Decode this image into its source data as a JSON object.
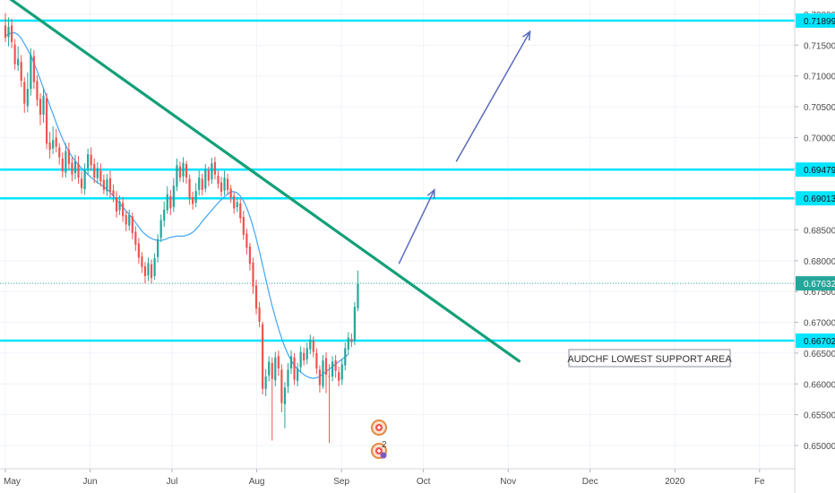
{
  "chart_data": {
    "type": "candlestick",
    "symbol_note": "AUDCHF LOWEST SUPPORT AREA",
    "x_axis": {
      "labels": [
        "May",
        "Jun",
        "Jul",
        "Aug",
        "Sep",
        "Oct",
        "Nov",
        "Dec",
        "2020",
        "Fe"
      ],
      "label_days": [
        0,
        31,
        61,
        92,
        123,
        153,
        184,
        214,
        245,
        276
      ]
    },
    "y_axis": {
      "ticks": [
        0.65,
        0.655,
        0.66,
        0.665,
        0.67,
        0.675,
        0.68,
        0.685,
        0.69,
        0.695,
        0.7,
        0.705,
        0.71,
        0.715,
        0.72
      ],
      "tick_labels": [
        "0.65000",
        "0.65500",
        "0.66000",
        "0.66500",
        "0.67000",
        "0.67500",
        "0.68000",
        "0.68500",
        "0.69000",
        "0.69500",
        "0.70000",
        "0.70500",
        "0.71000",
        "0.71500",
        "0.72000"
      ],
      "range": [
        0.6475,
        0.7225
      ]
    },
    "horizontal_levels": [
      {
        "value": 0.71899,
        "label": "0.71899"
      },
      {
        "value": 0.69479,
        "label": "0.69479"
      },
      {
        "value": 0.69013,
        "label": "0.69013"
      },
      {
        "value": 0.66702,
        "label": "0.66702"
      }
    ],
    "last_price": {
      "value": 0.67632,
      "label": "0.67632"
    },
    "trendline": {
      "start_day": -2,
      "start_value": 0.7237,
      "end_day": 188,
      "end_value": 0.6637
    },
    "forecast_arrows": [
      {
        "from_day": 144,
        "from_value": 0.6795,
        "to_day": 157,
        "to_value": 0.6915
      },
      {
        "from_day": 165,
        "from_value": 0.6961,
        "to_day": 192,
        "to_value": 0.7172
      }
    ],
    "candles": [
      [
        0.7182,
        0.7162,
        0.7202,
        0.7155
      ],
      [
        0.7163,
        0.718,
        0.7195,
        0.7148
      ],
      [
        0.7182,
        0.7155,
        0.7193,
        0.7145
      ],
      [
        0.7151,
        0.7119,
        0.716,
        0.711
      ],
      [
        0.7117,
        0.7128,
        0.7148,
        0.7108
      ],
      [
        0.7123,
        0.7092,
        0.7134,
        0.7082
      ],
      [
        0.709,
        0.7055,
        0.7098,
        0.704
      ],
      [
        0.7051,
        0.7079,
        0.7106,
        0.7041
      ],
      [
        0.7079,
        0.7134,
        0.7145,
        0.7068
      ],
      [
        0.7132,
        0.709,
        0.7142,
        0.7079
      ],
      [
        0.7092,
        0.7061,
        0.7101,
        0.7051
      ],
      [
        0.7063,
        0.7037,
        0.7072,
        0.702
      ],
      [
        0.7037,
        0.7068,
        0.7081,
        0.7024
      ],
      [
        0.7064,
        0.699,
        0.7072,
        0.6981
      ],
      [
        0.6992,
        0.698,
        0.7009,
        0.6966
      ],
      [
        0.6982,
        0.6996,
        0.7018,
        0.6973
      ],
      [
        0.7,
        0.6985,
        0.7014,
        0.6976
      ],
      [
        0.6984,
        0.6968,
        0.6991,
        0.6956
      ],
      [
        0.6966,
        0.6945,
        0.6976,
        0.6935
      ],
      [
        0.6943,
        0.6978,
        0.6991,
        0.6935
      ],
      [
        0.698,
        0.6957,
        0.6992,
        0.6948
      ],
      [
        0.6959,
        0.694,
        0.6968,
        0.6929
      ],
      [
        0.6942,
        0.6961,
        0.6972,
        0.6932
      ],
      [
        0.6957,
        0.6935,
        0.697,
        0.6925
      ],
      [
        0.6933,
        0.6918,
        0.6945,
        0.6909
      ],
      [
        0.6916,
        0.6947,
        0.6958,
        0.6907
      ],
      [
        0.6949,
        0.6973,
        0.6982,
        0.6939
      ],
      [
        0.6972,
        0.6955,
        0.6984,
        0.6946
      ],
      [
        0.6957,
        0.6935,
        0.6966,
        0.6926
      ],
      [
        0.6934,
        0.695,
        0.696,
        0.6925
      ],
      [
        0.6946,
        0.6929,
        0.6958,
        0.6921
      ],
      [
        0.6931,
        0.6915,
        0.694,
        0.6908
      ],
      [
        0.6913,
        0.6932,
        0.6941,
        0.6905
      ],
      [
        0.6934,
        0.6912,
        0.6946,
        0.6902
      ],
      [
        0.6914,
        0.6905,
        0.6924,
        0.6895
      ],
      [
        0.6903,
        0.688,
        0.6913,
        0.687
      ],
      [
        0.6882,
        0.6896,
        0.6906,
        0.6874
      ],
      [
        0.6894,
        0.6872,
        0.6903,
        0.6863
      ],
      [
        0.6874,
        0.6859,
        0.6881,
        0.6848
      ],
      [
        0.6857,
        0.6874,
        0.6883,
        0.6849
      ],
      [
        0.6872,
        0.6845,
        0.6878,
        0.6835
      ],
      [
        0.6847,
        0.6826,
        0.6856,
        0.6816
      ],
      [
        0.6828,
        0.6805,
        0.6837,
        0.6795
      ],
      [
        0.6807,
        0.679,
        0.6814,
        0.678
      ],
      [
        0.6791,
        0.6775,
        0.6798,
        0.6763
      ],
      [
        0.6776,
        0.6796,
        0.6805,
        0.6767
      ],
      [
        0.6794,
        0.6772,
        0.6802,
        0.6763
      ],
      [
        0.6775,
        0.6804,
        0.6812,
        0.6769
      ],
      [
        0.6806,
        0.6835,
        0.6843,
        0.6797
      ],
      [
        0.6837,
        0.6866,
        0.6875,
        0.683
      ],
      [
        0.6865,
        0.6883,
        0.6896,
        0.6855
      ],
      [
        0.6882,
        0.6908,
        0.6921,
        0.6876
      ],
      [
        0.6905,
        0.6885,
        0.6915,
        0.6874
      ],
      [
        0.6887,
        0.6922,
        0.6934,
        0.6879
      ],
      [
        0.692,
        0.6955,
        0.6966,
        0.6913
      ],
      [
        0.6953,
        0.6935,
        0.6961,
        0.6928
      ],
      [
        0.6937,
        0.6959,
        0.6968,
        0.6927
      ],
      [
        0.6957,
        0.6935,
        0.6962,
        0.6925
      ],
      [
        0.6933,
        0.6901,
        0.694,
        0.6891
      ],
      [
        0.6903,
        0.6892,
        0.6912,
        0.6883
      ],
      [
        0.6894,
        0.6913,
        0.6926,
        0.6887
      ],
      [
        0.6915,
        0.6935,
        0.6946,
        0.6906
      ],
      [
        0.6933,
        0.6915,
        0.6941,
        0.6906
      ],
      [
        0.6917,
        0.6948,
        0.6957,
        0.6911
      ],
      [
        0.6946,
        0.693,
        0.6953,
        0.6921
      ],
      [
        0.6932,
        0.6958,
        0.6967,
        0.6925
      ],
      [
        0.696,
        0.694,
        0.6969,
        0.6932
      ],
      [
        0.6938,
        0.6925,
        0.6946,
        0.6917
      ],
      [
        0.6927,
        0.6912,
        0.6936,
        0.6904
      ],
      [
        0.6914,
        0.6935,
        0.6946,
        0.6906
      ],
      [
        0.6933,
        0.6915,
        0.6941,
        0.6907
      ],
      [
        0.6917,
        0.6903,
        0.6923,
        0.6894
      ],
      [
        0.6905,
        0.6885,
        0.6911,
        0.6876
      ],
      [
        0.6887,
        0.6895,
        0.6903,
        0.6879
      ],
      [
        0.6893,
        0.6869,
        0.6901,
        0.6861
      ],
      [
        0.6871,
        0.6842,
        0.6881,
        0.6834
      ],
      [
        0.6844,
        0.6821,
        0.6852,
        0.681
      ],
      [
        0.6823,
        0.6795,
        0.6829,
        0.6784
      ],
      [
        0.6797,
        0.6758,
        0.6805,
        0.6746
      ],
      [
        0.676,
        0.6722,
        0.6769,
        0.6713
      ],
      [
        0.6724,
        0.6701,
        0.6733,
        0.6692
      ],
      [
        0.6697,
        0.6592,
        0.6701,
        0.6583
      ],
      [
        0.6592,
        0.6612,
        0.6624,
        0.658
      ],
      [
        0.6614,
        0.6636,
        0.6645,
        0.6604
      ],
      [
        0.6634,
        0.6608,
        0.6643,
        0.6508
      ],
      [
        0.6606,
        0.6643,
        0.6652,
        0.6596
      ],
      [
        0.6645,
        0.6625,
        0.6654,
        0.6613
      ],
      [
        0.6623,
        0.6569,
        0.6632,
        0.6554
      ],
      [
        0.6567,
        0.6594,
        0.6603,
        0.6528
      ],
      [
        0.6596,
        0.6623,
        0.6634,
        0.6585
      ],
      [
        0.6625,
        0.6645,
        0.6654,
        0.6616
      ],
      [
        0.6643,
        0.6607,
        0.665,
        0.6598
      ],
      [
        0.6605,
        0.6625,
        0.6634,
        0.6596
      ],
      [
        0.6627,
        0.6652,
        0.6661,
        0.6618
      ],
      [
        0.665,
        0.6638,
        0.6659,
        0.663
      ],
      [
        0.664,
        0.6658,
        0.6667,
        0.6632
      ],
      [
        0.6656,
        0.6672,
        0.668,
        0.6648
      ],
      [
        0.667,
        0.6652,
        0.6677,
        0.6643
      ],
      [
        0.665,
        0.6625,
        0.6658,
        0.6616
      ],
      [
        0.6623,
        0.6598,
        0.663,
        0.6586
      ],
      [
        0.6596,
        0.6638,
        0.6647,
        0.6592
      ],
      [
        0.6642,
        0.6615,
        0.6651,
        0.6585
      ],
      [
        0.6613,
        0.6612,
        0.6632,
        0.6504
      ],
      [
        0.6612,
        0.6636,
        0.6645,
        0.6604
      ],
      [
        0.6638,
        0.6621,
        0.6647,
        0.661
      ],
      [
        0.6619,
        0.6605,
        0.6628,
        0.6596
      ],
      [
        0.6607,
        0.6632,
        0.6641,
        0.6598
      ],
      [
        0.663,
        0.6658,
        0.6667,
        0.6622
      ],
      [
        0.6656,
        0.6675,
        0.6684,
        0.6648
      ],
      [
        0.6673,
        0.6668,
        0.6682,
        0.666
      ],
      [
        0.667,
        0.6725,
        0.6733,
        0.6663
      ],
      [
        0.6723,
        0.6763,
        0.6784,
        0.6718
      ]
    ],
    "moving_average": [
      0.7165,
      0.7168,
      0.717,
      0.717,
      0.7167,
      0.7161,
      0.7152,
      0.7143,
      0.7133,
      0.7121,
      0.7108,
      0.7094,
      0.708,
      0.7066,
      0.7052,
      0.7038,
      0.7024,
      0.701,
      0.6998,
      0.6987,
      0.6977,
      0.6969,
      0.6962,
      0.6956,
      0.695,
      0.6945,
      0.694,
      0.6935,
      0.6931,
      0.6927,
      0.6924,
      0.692,
      0.6916,
      0.6911,
      0.6905,
      0.6899,
      0.6893,
      0.6887,
      0.6881,
      0.6875,
      0.6869,
      0.6862,
      0.6855,
      0.6848,
      0.6843,
      0.6839,
      0.6836,
      0.6834,
      0.6833,
      0.6833,
      0.6834,
      0.6836,
      0.6838,
      0.6839,
      0.684,
      0.684,
      0.684,
      0.6841,
      0.6843,
      0.6846,
      0.6851,
      0.6857,
      0.6864,
      0.687,
      0.6876,
      0.6882,
      0.6888,
      0.6894,
      0.6899,
      0.6904,
      0.6908,
      0.6912,
      0.6912,
      0.691,
      0.6905,
      0.6897,
      0.6886,
      0.6872,
      0.6855,
      0.6836,
      0.6815,
      0.6793,
      0.677,
      0.6748,
      0.6727,
      0.6708,
      0.669,
      0.6674,
      0.666,
      0.6648,
      0.6638,
      0.663,
      0.6624,
      0.6619,
      0.6615,
      0.6612,
      0.661,
      0.6609,
      0.661,
      0.6612,
      0.6616,
      0.662,
      0.6624,
      0.6628,
      0.6632,
      0.6636,
      0.664,
      0.6644,
      0.6648
    ],
    "colors": {
      "up": "#26a69a",
      "down": "#ef5350",
      "level_line": "#00e5ff",
      "trendline": "#12a078",
      "moving_average": "#42a5f5",
      "arrow": "#5c6bc0",
      "price_line": "#26a69a",
      "grid": "#f0f3fa"
    }
  }
}
